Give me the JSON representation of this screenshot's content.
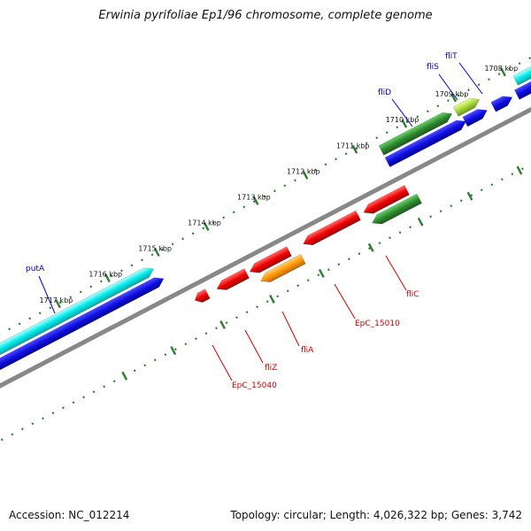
{
  "title": "Erwinia pyrifoliae Ep1/96 chromosome, complete genome",
  "footer": {
    "accession": "Accession: NC_012214",
    "summary": "Topology: circular; Length: 4,026,322 bp; Genes: 3,742"
  },
  "colors": {
    "backbone": "#888888",
    "ticks": "#2e7d32",
    "forward_cds": "#00e5e5",
    "forward_blue": "#1515e0",
    "reverse_red": "#ee0000",
    "reverse_orange": "#ff9900",
    "reverse_green": "#2e8b2e",
    "label_blue": "#0000cc",
    "label_red": "#cc0000"
  },
  "kbp_labels": [
    "1708 kbp",
    "1709 kbp",
    "1710 kbp",
    "1711 kbp",
    "1712 kbp",
    "1713 kbp",
    "1714 kbp",
    "1715 kbp",
    "1716 kbp",
    "1717 kbp"
  ],
  "gene_labels_top": [
    "fliT",
    "fliS",
    "fliD",
    "putA"
  ],
  "gene_labels_bottom": [
    "fliC",
    "EpC_15010",
    "fliA",
    "fliZ",
    "EpC_15040"
  ]
}
